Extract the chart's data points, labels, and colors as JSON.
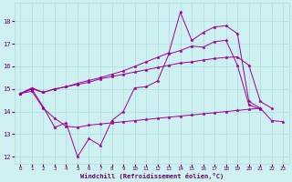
{
  "bg_color": "#cff0f0",
  "grid_color": "#aadddd",
  "line_color": "#990099",
  "xlabel": "Windchill (Refroidissement éolien,°C)",
  "xlabel_color": "#660066",
  "tick_color": "#660066",
  "ylim": [
    11.7,
    18.8
  ],
  "xlim": [
    -0.5,
    23.5
  ],
  "yticks": [
    12,
    13,
    14,
    15,
    16,
    17,
    18
  ],
  "xticks": [
    0,
    1,
    2,
    3,
    4,
    5,
    6,
    7,
    8,
    9,
    10,
    11,
    12,
    13,
    14,
    15,
    16,
    17,
    18,
    19,
    20,
    21,
    22,
    23
  ],
  "line_spike_x": [
    0,
    1,
    2,
    3,
    4,
    5,
    6,
    7,
    8,
    9,
    10,
    11,
    12,
    13,
    14,
    15,
    16,
    17,
    18,
    19,
    20,
    21
  ],
  "line_spike_y": [
    14.8,
    15.0,
    14.2,
    13.3,
    13.5,
    12.0,
    12.8,
    12.5,
    13.6,
    14.0,
    15.05,
    15.1,
    15.35,
    16.55,
    16.7,
    16.9,
    16.85,
    17.1,
    17.15,
    16.05,
    14.3,
    14.1
  ],
  "line_upper_x": [
    0,
    1,
    2,
    3,
    4,
    5,
    6,
    7,
    8,
    9,
    10,
    11,
    12,
    13,
    14,
    15,
    16,
    17,
    18,
    19,
    20,
    21,
    22
  ],
  "line_upper_y": [
    14.8,
    15.05,
    14.85,
    15.0,
    15.1,
    15.2,
    15.3,
    15.45,
    15.55,
    15.65,
    15.75,
    15.85,
    15.95,
    16.05,
    16.15,
    16.2,
    16.28,
    16.35,
    16.4,
    16.42,
    16.05,
    14.45,
    14.15
  ],
  "line_flat_x": [
    0,
    1,
    2,
    3,
    4,
    5,
    6,
    7,
    8,
    9,
    10,
    11,
    12,
    13,
    14,
    15,
    16,
    17,
    18,
    19,
    20,
    21,
    22,
    23
  ],
  "line_flat_y": [
    14.8,
    14.9,
    14.15,
    13.7,
    13.35,
    13.3,
    13.4,
    13.45,
    13.5,
    13.55,
    13.6,
    13.65,
    13.7,
    13.75,
    13.8,
    13.85,
    13.9,
    13.95,
    14.0,
    14.05,
    14.1,
    14.15,
    13.6,
    13.55
  ],
  "line_high_x": [
    0,
    1,
    2,
    3,
    4,
    5,
    6,
    7,
    8,
    9,
    10,
    11,
    12,
    13,
    14,
    15,
    16,
    17,
    18,
    19,
    20,
    21,
    22,
    23
  ],
  "line_high_y": [
    14.8,
    15.0,
    14.85,
    15.0,
    15.1,
    15.25,
    15.38,
    15.5,
    15.65,
    15.8,
    16.0,
    16.2,
    16.4,
    16.6,
    18.4,
    17.15,
    17.5,
    17.75,
    17.8,
    17.45,
    14.45,
    14.15,
    null,
    null
  ]
}
